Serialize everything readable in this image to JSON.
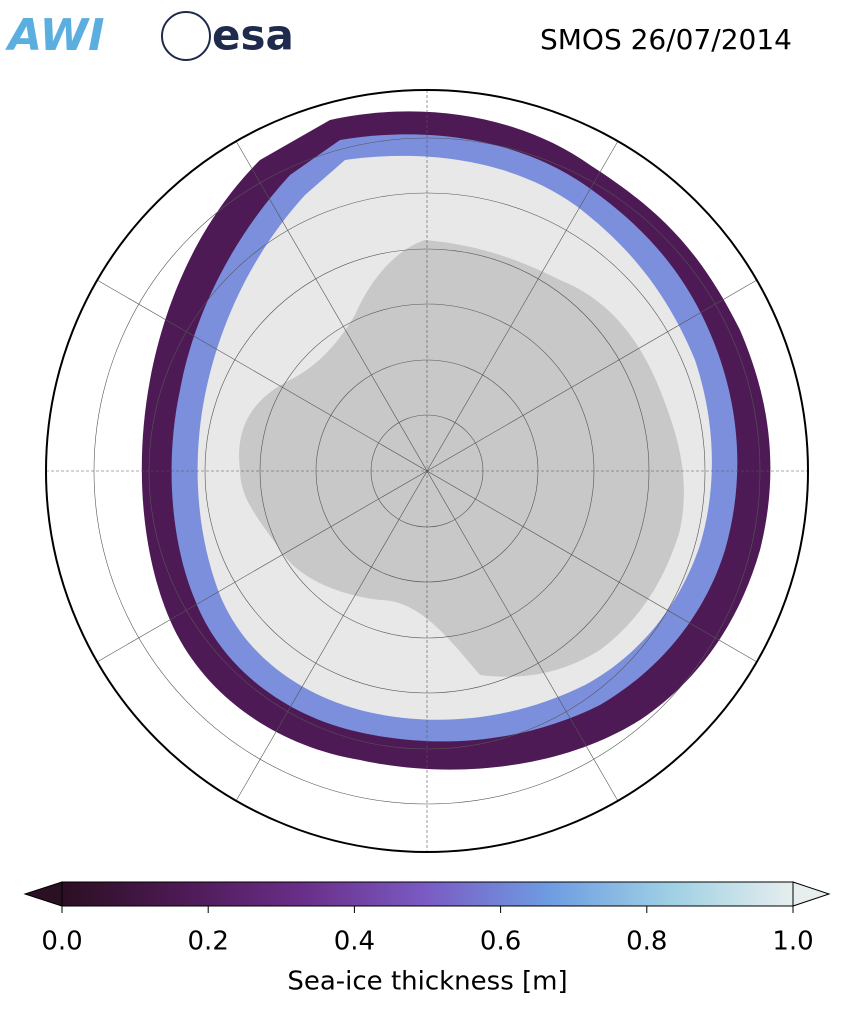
{
  "title": "SMOS 26/07/2014",
  "logos": {
    "awi": "AWI",
    "esa": "esa"
  },
  "colorbar": {
    "label": "Sea-ice thickness [m]",
    "lim": [
      0,
      1
    ],
    "ticks": [
      {
        "value": 0,
        "label": "0.0"
      },
      0.2,
      0.4,
      0.6,
      0.8,
      {
        "value": 1,
        "label": "1.0"
      }
    ],
    "colors": [
      "#2b0f22",
      "#4e1a55",
      "#6a2f8a",
      "#7a5cc4",
      "#6e9ce2",
      "#9fd0e4",
      "#e6eeee"
    ],
    "extend": "both"
  }
}
